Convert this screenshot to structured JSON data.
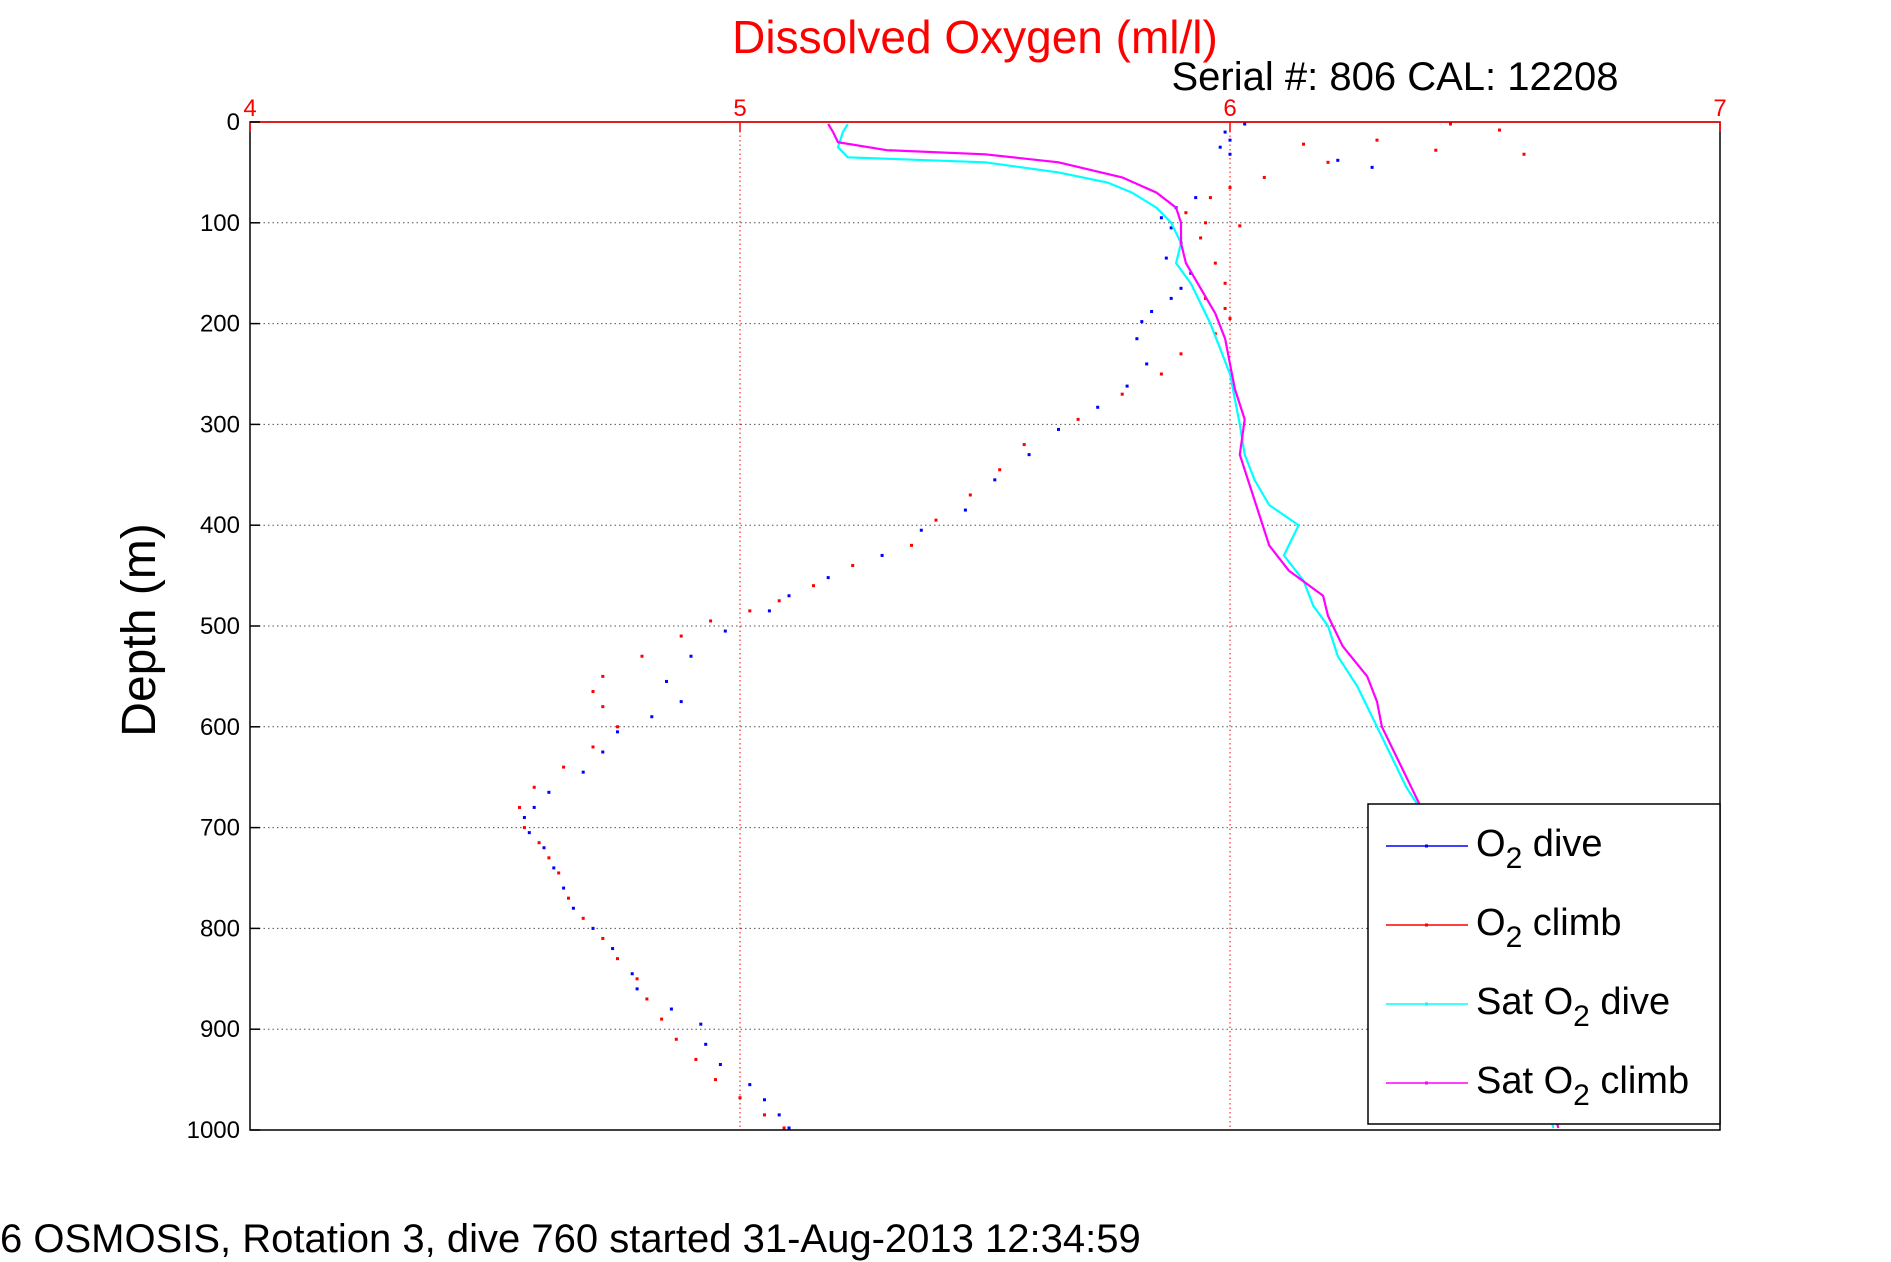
{
  "chart_data": {
    "type": "scatter",
    "title": "Dissolved Oxygen (ml/l)",
    "subtitle": "Serial #: 806  CAL: 12208",
    "caption": "6 OSMOSIS, Rotation 3, dive 760 started 31-Aug-2013 12:34:59",
    "xlabel": "",
    "ylabel": "Depth (m)",
    "xlim": [
      4,
      7
    ],
    "ylim": [
      0,
      1000
    ],
    "y_reversed": true,
    "x_axis_position": "top",
    "xticks": [
      "4",
      "5",
      "6",
      "7"
    ],
    "yticks": [
      "0",
      "100",
      "200",
      "300",
      "400",
      "500",
      "600",
      "700",
      "800",
      "900",
      "1000"
    ],
    "grid": true,
    "legend_position": "bottom-right",
    "colors": {
      "title": "#ff0000",
      "x_ticks": "#ff0000",
      "grid_x": "#ff0000",
      "grid_y": "#555555"
    },
    "series": [
      {
        "name": "O2 dive",
        "legend_parts": [
          "O",
          "2",
          " dive"
        ],
        "style": "dots",
        "color": "#0000ff",
        "points": [
          [
            6.03,
            2
          ],
          [
            5.99,
            10
          ],
          [
            6.0,
            18
          ],
          [
            5.98,
            25
          ],
          [
            6.0,
            32
          ],
          [
            6.22,
            38
          ],
          [
            6.29,
            45
          ],
          [
            5.93,
            75
          ],
          [
            5.89,
            85
          ],
          [
            5.86,
            95
          ],
          [
            5.88,
            105
          ],
          [
            5.9,
            120
          ],
          [
            5.87,
            135
          ],
          [
            5.92,
            150
          ],
          [
            5.9,
            165
          ],
          [
            5.88,
            175
          ],
          [
            5.84,
            188
          ],
          [
            5.82,
            198
          ],
          [
            5.81,
            215
          ],
          [
            5.83,
            240
          ],
          [
            5.79,
            262
          ],
          [
            5.73,
            283
          ],
          [
            5.65,
            305
          ],
          [
            5.59,
            330
          ],
          [
            5.52,
            355
          ],
          [
            5.46,
            385
          ],
          [
            5.37,
            405
          ],
          [
            5.29,
            430
          ],
          [
            5.18,
            452
          ],
          [
            5.1,
            470
          ],
          [
            5.06,
            485
          ],
          [
            4.97,
            505
          ],
          [
            4.9,
            530
          ],
          [
            4.85,
            555
          ],
          [
            4.88,
            575
          ],
          [
            4.82,
            590
          ],
          [
            4.75,
            605
          ],
          [
            4.72,
            625
          ],
          [
            4.68,
            645
          ],
          [
            4.61,
            665
          ],
          [
            4.58,
            680
          ],
          [
            4.56,
            690
          ],
          [
            4.57,
            705
          ],
          [
            4.6,
            720
          ],
          [
            4.62,
            740
          ],
          [
            4.64,
            760
          ],
          [
            4.66,
            780
          ],
          [
            4.7,
            800
          ],
          [
            4.74,
            820
          ],
          [
            4.78,
            845
          ],
          [
            4.79,
            860
          ],
          [
            4.86,
            880
          ],
          [
            4.92,
            895
          ],
          [
            4.93,
            915
          ],
          [
            4.96,
            935
          ],
          [
            5.02,
            955
          ],
          [
            5.05,
            970
          ],
          [
            5.08,
            985
          ],
          [
            5.1,
            998
          ]
        ]
      },
      {
        "name": "O2 climb",
        "legend_parts": [
          "O",
          "2",
          " climb"
        ],
        "style": "dots",
        "color": "#ff0000",
        "points": [
          [
            6.45,
            2
          ],
          [
            6.55,
            8
          ],
          [
            6.3,
            18
          ],
          [
            6.15,
            22
          ],
          [
            6.42,
            28
          ],
          [
            6.6,
            32
          ],
          [
            6.2,
            40
          ],
          [
            6.07,
            55
          ],
          [
            6.0,
            65
          ],
          [
            5.96,
            75
          ],
          [
            5.91,
            90
          ],
          [
            5.95,
            100
          ],
          [
            6.02,
            103
          ],
          [
            5.94,
            115
          ],
          [
            5.97,
            140
          ],
          [
            5.99,
            160
          ],
          [
            5.95,
            175
          ],
          [
            5.99,
            185
          ],
          [
            6.0,
            195
          ],
          [
            5.97,
            210
          ],
          [
            5.9,
            230
          ],
          [
            5.86,
            250
          ],
          [
            5.78,
            270
          ],
          [
            5.69,
            295
          ],
          [
            5.58,
            320
          ],
          [
            5.53,
            345
          ],
          [
            5.47,
            370
          ],
          [
            5.4,
            395
          ],
          [
            5.35,
            420
          ],
          [
            5.23,
            440
          ],
          [
            5.15,
            460
          ],
          [
            5.08,
            475
          ],
          [
            5.02,
            485
          ],
          [
            4.94,
            495
          ],
          [
            4.88,
            510
          ],
          [
            4.8,
            530
          ],
          [
            4.72,
            550
          ],
          [
            4.7,
            565
          ],
          [
            4.72,
            580
          ],
          [
            4.75,
            600
          ],
          [
            4.7,
            620
          ],
          [
            4.64,
            640
          ],
          [
            4.58,
            660
          ],
          [
            4.55,
            680
          ],
          [
            4.56,
            700
          ],
          [
            4.59,
            715
          ],
          [
            4.61,
            730
          ],
          [
            4.63,
            745
          ],
          [
            4.65,
            770
          ],
          [
            4.68,
            790
          ],
          [
            4.72,
            810
          ],
          [
            4.75,
            830
          ],
          [
            4.79,
            850
          ],
          [
            4.81,
            870
          ],
          [
            4.84,
            890
          ],
          [
            4.87,
            910
          ],
          [
            4.91,
            930
          ],
          [
            4.95,
            950
          ],
          [
            5.0,
            968
          ],
          [
            5.05,
            985
          ],
          [
            5.09,
            998
          ]
        ]
      },
      {
        "name": "Sat O2 dive",
        "legend_parts": [
          "Sat O",
          "2",
          " dive"
        ],
        "style": "line",
        "color": "#00ffff",
        "points": [
          [
            5.22,
            2
          ],
          [
            5.21,
            10
          ],
          [
            5.2,
            25
          ],
          [
            5.22,
            35
          ],
          [
            5.5,
            40
          ],
          [
            5.65,
            50
          ],
          [
            5.75,
            60
          ],
          [
            5.8,
            70
          ],
          [
            5.85,
            85
          ],
          [
            5.88,
            100
          ],
          [
            5.9,
            120
          ],
          [
            5.89,
            140
          ],
          [
            5.92,
            160
          ],
          [
            5.94,
            180
          ],
          [
            5.96,
            200
          ],
          [
            5.98,
            225
          ],
          [
            6.0,
            250
          ],
          [
            6.01,
            275
          ],
          [
            6.02,
            300
          ],
          [
            6.03,
            330
          ],
          [
            6.05,
            355
          ],
          [
            6.08,
            380
          ],
          [
            6.14,
            400
          ],
          [
            6.11,
            430
          ],
          [
            6.15,
            455
          ],
          [
            6.17,
            480
          ],
          [
            6.2,
            500
          ],
          [
            6.22,
            530
          ],
          [
            6.26,
            560
          ],
          [
            6.28,
            580
          ],
          [
            6.3,
            600
          ],
          [
            6.33,
            630
          ],
          [
            6.36,
            660
          ],
          [
            6.4,
            690
          ],
          [
            6.44,
            720
          ],
          [
            6.5,
            780
          ],
          [
            6.55,
            840
          ],
          [
            6.6,
            900
          ],
          [
            6.64,
            960
          ],
          [
            6.66,
            998
          ]
        ]
      },
      {
        "name": "Sat O2 climb",
        "legend_parts": [
          "Sat O",
          "2",
          " climb"
        ],
        "style": "line",
        "color": "#ff00ff",
        "points": [
          [
            5.18,
            2
          ],
          [
            5.19,
            10
          ],
          [
            5.2,
            20
          ],
          [
            5.3,
            28
          ],
          [
            5.5,
            32
          ],
          [
            5.65,
            40
          ],
          [
            5.78,
            55
          ],
          [
            5.85,
            70
          ],
          [
            5.89,
            85
          ],
          [
            5.9,
            100
          ],
          [
            5.9,
            120
          ],
          [
            5.91,
            140
          ],
          [
            5.94,
            165
          ],
          [
            5.97,
            190
          ],
          [
            5.99,
            215
          ],
          [
            6.0,
            240
          ],
          [
            6.01,
            265
          ],
          [
            6.03,
            295
          ],
          [
            6.02,
            330
          ],
          [
            6.04,
            360
          ],
          [
            6.06,
            390
          ],
          [
            6.08,
            420
          ],
          [
            6.12,
            445
          ],
          [
            6.19,
            470
          ],
          [
            6.2,
            490
          ],
          [
            6.23,
            520
          ],
          [
            6.28,
            550
          ],
          [
            6.3,
            575
          ],
          [
            6.31,
            600
          ],
          [
            6.34,
            630
          ],
          [
            6.37,
            660
          ],
          [
            6.4,
            690
          ],
          [
            6.45,
            720
          ],
          [
            6.5,
            780
          ],
          [
            6.56,
            840
          ],
          [
            6.61,
            900
          ],
          [
            6.65,
            960
          ],
          [
            6.67,
            998
          ]
        ]
      }
    ]
  }
}
